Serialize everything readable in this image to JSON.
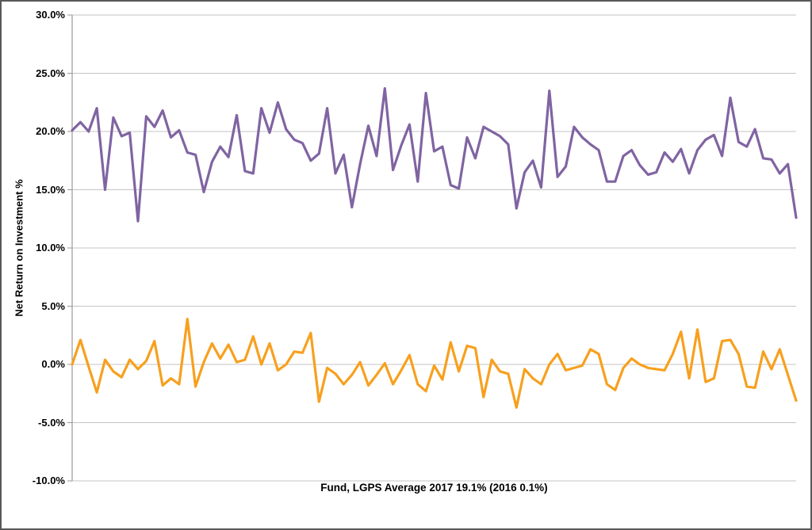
{
  "chart_data": {
    "type": "line",
    "title": "",
    "xlabel": "Fund, LGPS Average 2017 19.1% (2016 0.1%)",
    "ylabel": "Net Return on Investment %",
    "ylim": [
      -10,
      30
    ],
    "ytick_step": 5,
    "grid": true,
    "legend_position": "none",
    "x_axis": "89 individual funds (categorical, no tick labels shown)",
    "y_ticks": [
      {
        "label": "30.0%",
        "value": 30
      },
      {
        "label": "25.0%",
        "value": 25
      },
      {
        "label": "20.0%",
        "value": 20
      },
      {
        "label": "15.0%",
        "value": 15
      },
      {
        "label": "10.0%",
        "value": 10
      },
      {
        "label": "5.0%",
        "value": 5
      },
      {
        "label": "0.0%",
        "value": 0
      },
      {
        "label": "-5.0%",
        "value": -5
      },
      {
        "label": "-10.0%",
        "value": -10
      }
    ],
    "series": [
      {
        "name": "2017",
        "color": "#8064A2",
        "average_label": "19.1%",
        "values": [
          20.1,
          20.8,
          20.0,
          22.0,
          15.0,
          21.2,
          19.6,
          19.9,
          12.3,
          21.3,
          20.4,
          21.8,
          19.5,
          20.1,
          18.2,
          18.0,
          14.8,
          17.4,
          18.7,
          17.8,
          21.4,
          16.6,
          16.4,
          22.0,
          19.9,
          22.5,
          20.2,
          19.3,
          19.0,
          17.5,
          18.1,
          22.0,
          16.4,
          18.0,
          13.5,
          17.2,
          20.5,
          17.9,
          23.7,
          16.7,
          18.8,
          20.6,
          15.7,
          23.3,
          18.3,
          18.7,
          15.4,
          15.1,
          19.5,
          17.7,
          20.4,
          20.0,
          19.6,
          18.9,
          13.4,
          16.5,
          17.5,
          15.2,
          23.5,
          16.1,
          17.0,
          20.4,
          19.5,
          18.9,
          18.4,
          15.7,
          15.7,
          17.9,
          18.4,
          17.1,
          16.3,
          16.5,
          18.2,
          17.4,
          18.5,
          16.4,
          18.4,
          19.3,
          19.7,
          17.9,
          22.9,
          19.1,
          18.7,
          20.2,
          17.7,
          17.6,
          16.4,
          17.2,
          12.6
        ]
      },
      {
        "name": "2016",
        "color": "#F7A01E",
        "average_label": "0.1%",
        "values": [
          0.0,
          2.1,
          -0.2,
          -2.4,
          0.4,
          -0.6,
          -1.1,
          0.4,
          -0.4,
          0.3,
          2.0,
          -1.8,
          -1.2,
          -1.7,
          3.9,
          -1.9,
          0.2,
          1.8,
          0.5,
          1.7,
          0.2,
          0.4,
          2.4,
          0.0,
          1.8,
          -0.5,
          0.0,
          1.1,
          1.0,
          2.7,
          -3.2,
          -0.3,
          -0.8,
          -1.7,
          -0.9,
          0.2,
          -1.8,
          -0.9,
          0.1,
          -1.7,
          -0.5,
          0.8,
          -1.7,
          -2.3,
          -0.1,
          -1.3,
          1.9,
          -0.6,
          1.6,
          1.4,
          -2.8,
          0.4,
          -0.6,
          -0.8,
          -3.7,
          -0.4,
          -1.2,
          -1.7,
          0.0,
          0.9,
          -0.5,
          -0.3,
          -0.1,
          1.3,
          0.9,
          -1.7,
          -2.2,
          -0.3,
          0.5,
          0.0,
          -0.3,
          -0.4,
          -0.5,
          0.9,
          2.8,
          -1.2,
          3.0,
          -1.5,
          -1.2,
          2.0,
          2.1,
          0.9,
          -1.9,
          -2.0,
          1.1,
          -0.4,
          1.3,
          -0.9,
          -3.1
        ]
      }
    ]
  },
  "colors": {
    "series_2017": "#8064A2",
    "series_2016": "#F7A01E",
    "gridline": "#C4C4C4",
    "axis": "#999999",
    "text": "#000000",
    "frame_border": "#595959",
    "background": "#FFFFFF"
  }
}
